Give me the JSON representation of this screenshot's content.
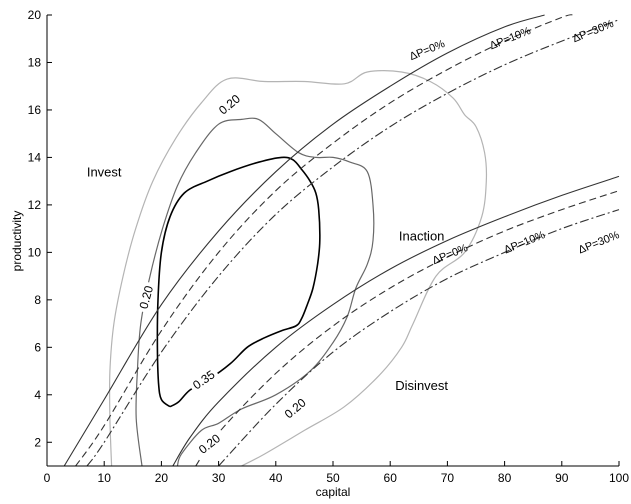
{
  "chart_data": {
    "type": "line",
    "xlabel": "capital",
    "ylabel": "productivity",
    "xlim": [
      0,
      100
    ],
    "ylim": [
      1,
      20
    ],
    "x_ticks": [
      0,
      10,
      20,
      30,
      40,
      50,
      60,
      70,
      80,
      90,
      100
    ],
    "y_ticks": [
      2,
      4,
      6,
      8,
      10,
      12,
      14,
      16,
      18,
      20
    ],
    "grid": false,
    "regions": [
      {
        "label": "Invest",
        "x": 10,
        "y": 13.2
      },
      {
        "label": "Inaction",
        "x": 65.5,
        "y": 10.5
      },
      {
        "label": "Disinvest",
        "x": 65.5,
        "y": 4.2
      }
    ],
    "contours": [
      {
        "level": "0.20",
        "color": "#b4b4b4",
        "width": 1.2,
        "points": [
          [
            11.3,
            1
          ],
          [
            11,
            3
          ],
          [
            11,
            5
          ],
          [
            11.7,
            7
          ],
          [
            13.3,
            9
          ],
          [
            15.5,
            11
          ],
          [
            18.5,
            13
          ],
          [
            22.5,
            14.8
          ],
          [
            27,
            16.3
          ],
          [
            31.5,
            17.3
          ],
          [
            38,
            17.2
          ],
          [
            45,
            17.2
          ],
          [
            52,
            17.1
          ],
          [
            56,
            17.6
          ],
          [
            62,
            17.6
          ],
          [
            67,
            17.2
          ],
          [
            71,
            16.5
          ],
          [
            73,
            15.8
          ],
          [
            75,
            15.3
          ],
          [
            76.5,
            14.2
          ],
          [
            76.8,
            13
          ],
          [
            76,
            11.5
          ],
          [
            73,
            10
          ],
          [
            68,
            9
          ],
          [
            64,
            7
          ],
          [
            62,
            6
          ],
          [
            58,
            4.8
          ],
          [
            52,
            3.5
          ],
          [
            45,
            2.5
          ],
          [
            38,
            1.5
          ],
          [
            34,
            1
          ]
        ]
      },
      {
        "level": "0.20",
        "color": "#686868",
        "width": 1.2,
        "points": [
          [
            16.6,
            1
          ],
          [
            15.6,
            3
          ],
          [
            15.8,
            5
          ],
          [
            16.4,
            7
          ],
          [
            18,
            9
          ],
          [
            20.2,
            11
          ],
          [
            22.8,
            12.8
          ],
          [
            26,
            14.2
          ],
          [
            30,
            15.4
          ],
          [
            34,
            15.6
          ],
          [
            37,
            15.6
          ],
          [
            40,
            15
          ],
          [
            44,
            14.2
          ],
          [
            47,
            14
          ],
          [
            50,
            14
          ],
          [
            53,
            13.8
          ],
          [
            56,
            13.4
          ],
          [
            57,
            12
          ],
          [
            57,
            10.5
          ],
          [
            56,
            9.5
          ],
          [
            54,
            8.5
          ],
          [
            52.5,
            7.3
          ],
          [
            50,
            6.2
          ],
          [
            46,
            5
          ],
          [
            40,
            4
          ],
          [
            34,
            3.4
          ],
          [
            30,
            2.8
          ],
          [
            27,
            2.5
          ],
          [
            23.5,
            1.5
          ],
          [
            22.8,
            1
          ]
        ]
      },
      {
        "level": "0.35",
        "color": "#000000",
        "width": 1.6,
        "points": [
          [
            21.5,
            3.5
          ],
          [
            20,
            3.8
          ],
          [
            19.5,
            4.5
          ],
          [
            19.3,
            6
          ],
          [
            19.4,
            8
          ],
          [
            20,
            10
          ],
          [
            21.5,
            11.5
          ],
          [
            24,
            12.5
          ],
          [
            28,
            13
          ],
          [
            32,
            13.4
          ],
          [
            37,
            13.8
          ],
          [
            41,
            14
          ],
          [
            43,
            13.9
          ],
          [
            44.5,
            13.5
          ],
          [
            46,
            13
          ],
          [
            47,
            12.5
          ],
          [
            47.5,
            11.8
          ],
          [
            47.7,
            10.5
          ],
          [
            47.3,
            9.5
          ],
          [
            46.5,
            8.5
          ],
          [
            45.5,
            7.8
          ],
          [
            44.5,
            7.2
          ],
          [
            43.5,
            6.9
          ],
          [
            41,
            6.7
          ],
          [
            38,
            6.4
          ],
          [
            35,
            6
          ],
          [
            32,
            5.3
          ],
          [
            28,
            4.6
          ],
          [
            25,
            4.2
          ],
          [
            23,
            3.7
          ],
          [
            21.5,
            3.5
          ]
        ]
      }
    ],
    "contour_labels": [
      {
        "text": "0.20",
        "x": 32,
        "y": 16.2,
        "angle": -40
      },
      {
        "text": "0.20",
        "x": 17.5,
        "y": 8.1,
        "angle": -75
      },
      {
        "text": "0.35",
        "x": 27.5,
        "y": 4.6,
        "angle": -35
      },
      {
        "text": "0.20",
        "x": 28.5,
        "y": 1.9,
        "angle": -38
      },
      {
        "text": "0.20",
        "x": 43.5,
        "y": 3.4,
        "angle": -40
      }
    ],
    "series": [
      {
        "name": "ΔP=0%",
        "group": "upper",
        "style": "solid",
        "color": "#333333",
        "x": [
          3,
          10,
          20,
          30,
          40,
          50,
          60,
          70,
          80,
          87
        ],
        "y": [
          1,
          3.8,
          7.8,
          10.9,
          13.4,
          15.4,
          17,
          18.4,
          19.5,
          20
        ]
      },
      {
        "name": "ΔP=10%",
        "group": "upper",
        "style": "dashed",
        "color": "#333333",
        "x": [
          5,
          10,
          20,
          30,
          40,
          50,
          60,
          70,
          80,
          90,
          92
        ],
        "y": [
          1,
          2.7,
          6.7,
          10,
          12.6,
          14.6,
          16.3,
          17.7,
          18.9,
          19.9,
          20
        ]
      },
      {
        "name": "ΔP=30%",
        "group": "upper",
        "style": "dashdot",
        "color": "#333333",
        "x": [
          7,
          10,
          20,
          30,
          40,
          50,
          60,
          70,
          80,
          90,
          100
        ],
        "y": [
          1,
          2,
          5.8,
          9,
          11.6,
          13.6,
          15.3,
          16.7,
          17.9,
          18.9,
          19.8
        ]
      },
      {
        "name": "ΔP=0%",
        "group": "lower",
        "style": "solid",
        "color": "#333333",
        "x": [
          22,
          25,
          30,
          40,
          50,
          60,
          70,
          80,
          90,
          100
        ],
        "y": [
          1,
          2.2,
          3.7,
          6,
          7.8,
          9.3,
          10.5,
          11.5,
          12.4,
          13.2
        ]
      },
      {
        "name": "ΔP=10%",
        "group": "lower",
        "style": "dashed",
        "color": "#333333",
        "x": [
          26,
          30,
          40,
          50,
          60,
          70,
          80,
          90,
          100
        ],
        "y": [
          1,
          2.4,
          4.9,
          6.9,
          8.5,
          9.8,
          10.9,
          11.8,
          12.6
        ]
      },
      {
        "name": "ΔP=30%",
        "group": "lower",
        "style": "dashdot",
        "color": "#333333",
        "x": [
          30,
          40,
          50,
          60,
          70,
          80,
          90,
          100
        ],
        "y": [
          1,
          3.6,
          5.8,
          7.5,
          8.9,
          10,
          11,
          11.8
        ]
      }
    ],
    "threshold_labels": [
      {
        "text": "ΔP=0%",
        "x": 66.5,
        "y": 18.5,
        "angle": -22
      },
      {
        "text": "ΔP=10%",
        "x": 81,
        "y": 19,
        "angle": -22
      },
      {
        "text": "ΔP=30%",
        "x": 95.5,
        "y": 19.3,
        "angle": -22
      },
      {
        "text": "ΔP=0%",
        "x": 70.5,
        "y": 9.9,
        "angle": -22
      },
      {
        "text": "ΔP=10%",
        "x": 83.5,
        "y": 10.4,
        "angle": -22
      },
      {
        "text": "ΔP=30%",
        "x": 96.5,
        "y": 10.4,
        "angle": -22
      }
    ]
  }
}
